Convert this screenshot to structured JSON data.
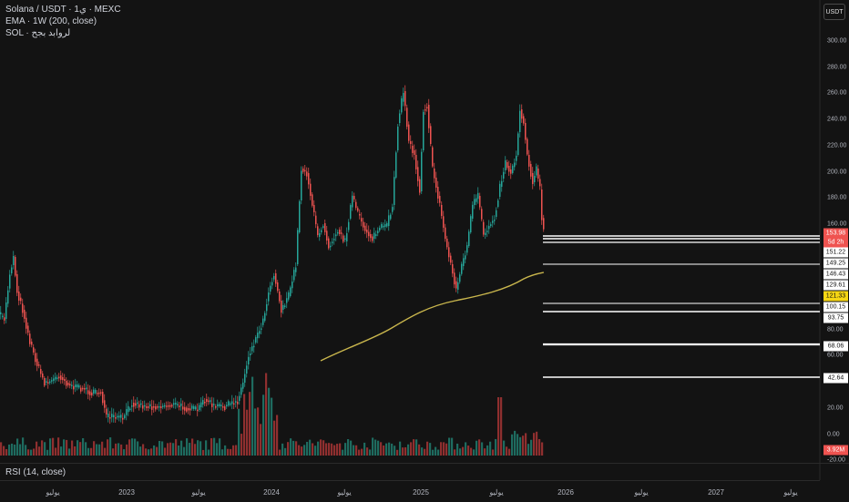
{
  "header": {
    "symbol_line": "Solana / USDT · 1ي · MEXC",
    "ema_line": "EMA · 1W (200, close)",
    "sol_line": "SOL · لروابد بجح"
  },
  "currency_button": "USDT",
  "rsi_label": "RSI (14, close)",
  "price_axis": [
    "300.00",
    "280.00",
    "260.00",
    "240.00",
    "220.00",
    "200.00",
    "180.00",
    "160.00",
    "80.00",
    "60.00",
    "20.00",
    "0.00",
    "-20.00"
  ],
  "level_labels": [
    "151.22",
    "149.25",
    "146.43",
    "129.61",
    "100.15",
    "93.75",
    "68.06",
    "42.64"
  ],
  "ema_value": "121.33",
  "last_price": "153.98",
  "countdown": "5d 2h",
  "volume_value": "3.92M",
  "time_labels": [
    "يوليو",
    "2023",
    "يوليو",
    "2024",
    "يوليو",
    "2025",
    "يوليو",
    "2026",
    "يوليو",
    "2027",
    "يوليو"
  ],
  "colors": {
    "up": "#26a69a",
    "down": "#ef5350",
    "ema": "#c9b64d",
    "bg": "#131313",
    "level": "#ffffff"
  }
}
